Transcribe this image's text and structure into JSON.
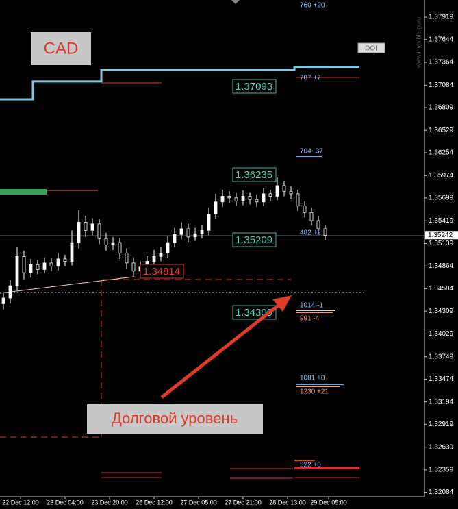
{
  "chart_data": {
    "type": "candlestick",
    "title": "CAD",
    "annotation": "Долговой уровень",
    "watermark": "www.invisible.guru",
    "doi_label": "DOI",
    "open": [
      1.344,
      1.3447,
      1.3462,
      1.3498,
      1.3478,
      1.3488,
      1.3482,
      1.349,
      1.3486,
      1.3495,
      1.3492,
      1.3515,
      1.354,
      1.353,
      1.3538,
      1.352,
      1.3512,
      1.3515,
      1.3502,
      1.349,
      1.348,
      1.3485,
      1.3492,
      1.3498,
      1.3502,
      1.3515,
      1.3525,
      1.3532,
      1.3522,
      1.3526,
      1.353,
      1.355,
      1.3565,
      1.3572,
      1.357,
      1.3566,
      1.3572,
      1.3568,
      1.3565,
      1.3575,
      1.3572,
      1.3585,
      1.3578,
      1.3575,
      1.356,
      1.3552,
      1.3542,
      1.3532
    ],
    "high": [
      1.3454,
      1.3469,
      1.351,
      1.3505,
      1.3495,
      1.3494,
      1.3497,
      1.3496,
      1.3502,
      1.35,
      1.353,
      1.3555,
      1.3548,
      1.3545,
      1.3544,
      1.3527,
      1.3522,
      1.3521,
      1.3508,
      1.3497,
      1.3492,
      1.3499,
      1.3506,
      1.351,
      1.3523,
      1.3533,
      1.354,
      1.3538,
      1.3533,
      1.3537,
      1.3558,
      1.3575,
      1.358,
      1.3578,
      1.3576,
      1.3579,
      1.3577,
      1.3574,
      1.3582,
      1.358,
      1.3595,
      1.3591,
      1.3584,
      1.358,
      1.3566,
      1.3558,
      1.3548,
      1.3537
    ],
    "low": [
      1.3433,
      1.344,
      1.3456,
      1.347,
      1.3472,
      1.3476,
      1.3477,
      1.348,
      1.3481,
      1.3486,
      1.3487,
      1.3508,
      1.3522,
      1.3524,
      1.3513,
      1.3505,
      1.3506,
      1.3495,
      1.3483,
      1.3473,
      1.3474,
      1.3479,
      1.3486,
      1.3492,
      1.3496,
      1.3509,
      1.3519,
      1.3516,
      1.3517,
      1.352,
      1.3524,
      1.3544,
      1.3559,
      1.3564,
      1.356,
      1.3561,
      1.3562,
      1.3559,
      1.356,
      1.3566,
      1.3567,
      1.3572,
      1.3569,
      1.3554,
      1.3546,
      1.3536,
      1.3526,
      1.3518
    ],
    "close": [
      1.3447,
      1.3462,
      1.3498,
      1.3478,
      1.3488,
      1.3482,
      1.349,
      1.3486,
      1.3495,
      1.3492,
      1.3515,
      1.354,
      1.353,
      1.3538,
      1.352,
      1.3512,
      1.3515,
      1.3502,
      1.349,
      1.348,
      1.3485,
      1.3492,
      1.3498,
      1.3502,
      1.3515,
      1.3525,
      1.3532,
      1.3522,
      1.3526,
      1.353,
      1.355,
      1.3565,
      1.3572,
      1.357,
      1.3566,
      1.3572,
      1.3568,
      1.3565,
      1.3575,
      1.3572,
      1.3585,
      1.3578,
      1.3575,
      1.356,
      1.3552,
      1.3542,
      1.3532,
      1.3524
    ],
    "candle_color": "#ffffff",
    "step_line": {
      "color": "#7ec8e8",
      "x": [
        -0.5,
        4.3,
        4.3,
        14.3,
        14.3,
        42.5,
        42.5,
        52
      ],
      "y": [
        1.3691,
        1.3691,
        1.3713,
        1.3713,
        1.3727,
        1.3727,
        1.3731,
        1.3731
      ]
    },
    "ylim": [
      1.3203,
      1.3813
    ],
    "yticks": [
      1.37919,
      1.37644,
      1.37364,
      1.37084,
      1.36809,
      1.36529,
      1.36254,
      1.35974,
      1.35699,
      1.35419,
      1.35139,
      1.34864,
      1.34584,
      1.34309,
      1.34029,
      1.33749,
      1.33474,
      1.33194,
      1.32919,
      1.32639,
      1.32359,
      1.32084
    ],
    "current_price": 1.35242,
    "xlim": [
      -0.5,
      61.5
    ],
    "xticks": [
      {
        "value": 2.5,
        "label": "22 Dec 12:00"
      },
      {
        "value": 9,
        "label": "23 Dec 04:00"
      },
      {
        "value": 15.5,
        "label": "23 Dec 20:00"
      },
      {
        "value": 22,
        "label": "26 Dec 12:00"
      },
      {
        "value": 28.5,
        "label": "27 Dec 05:00"
      },
      {
        "value": 35,
        "label": "27 Dec 21:00"
      },
      {
        "value": 41.5,
        "label": "28 Dec 13:00"
      },
      {
        "value": 47.5,
        "label": "29 Dec 05:00"
      }
    ],
    "level_boxes": [
      "1.37093",
      "1.36235",
      "1.35209",
      "1.34309"
    ],
    "red_box": "1.34814",
    "side_labels": [
      "760 +20",
      "787 +7",
      "704 -37",
      "482 +2",
      "1014 -1",
      "991 -4",
      "1081 +0",
      "1230 +21",
      "522 +0"
    ]
  }
}
